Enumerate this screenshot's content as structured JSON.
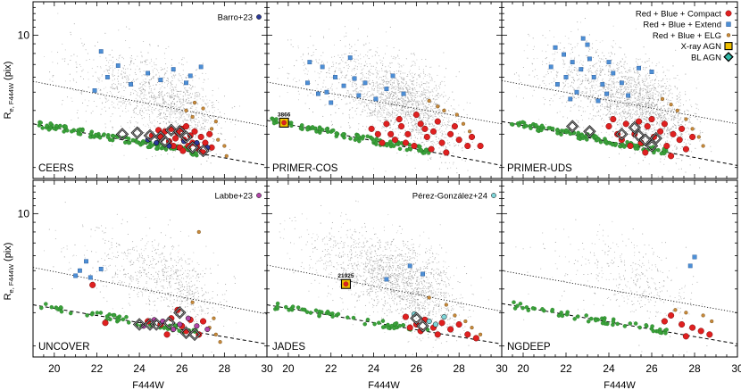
{
  "chart_data": {
    "type": "scatter",
    "title": "",
    "xlabel": "F444W",
    "ylabel_main": "R",
    "ylabel_sub": "e, F444W",
    "ylabel_unit": "(pix)",
    "xlim": [
      19,
      30
    ],
    "yscale": "log",
    "ylim": [
      1.75,
      15
    ],
    "xticks": [
      20,
      22,
      24,
      26,
      28,
      30
    ],
    "yticks": [
      10
    ],
    "legend": {
      "position": "top-right",
      "entries": [
        {
          "label": "Red + Blue + Compact",
          "marker": "circle-large",
          "color": "#e02020"
        },
        {
          "label": "Red + Blue + Extend",
          "marker": "square",
          "color": "#4d8fd6"
        },
        {
          "label": "Red + Blue + ELG",
          "marker": "circle-small",
          "color": "#c88a3a"
        },
        {
          "label": "X-ray AGN",
          "marker": "open-square",
          "color": "#f0c000"
        },
        {
          "label": "BL AGN",
          "marker": "open-diamond",
          "color": "#2fb9a8"
        }
      ]
    },
    "panels": [
      {
        "name": "CEERS",
        "ref": "Barro+23",
        "ref_color": "#2c3a99",
        "ref_shape": "circle",
        "density": 1.0,
        "upper_line": [
          [
            19,
            5.7
          ],
          [
            30,
            3.3
          ]
        ],
        "lower_line": [
          [
            19,
            3.4
          ],
          [
            30,
            2.05
          ]
        ],
        "compact": [
          [
            25.0,
            2.9
          ],
          [
            25.4,
            2.75
          ],
          [
            25.8,
            3.05
          ],
          [
            26.1,
            2.8
          ],
          [
            26.3,
            2.6
          ],
          [
            26.6,
            3.1
          ],
          [
            26.9,
            2.9
          ],
          [
            25.6,
            2.6
          ],
          [
            26.0,
            3.2
          ],
          [
            27.1,
            2.7
          ],
          [
            25.2,
            3.1
          ],
          [
            26.4,
            2.95
          ],
          [
            26.8,
            2.5
          ],
          [
            27.3,
            3.0
          ],
          [
            25.7,
            2.85
          ],
          [
            26.2,
            3.3
          ],
          [
            24.6,
            2.95
          ],
          [
            27.0,
            2.4
          ],
          [
            26.5,
            2.7
          ],
          [
            25.9,
            2.55
          ],
          [
            26.7,
            2.65
          ],
          [
            27.4,
            2.55
          ],
          [
            24.9,
            3.15
          ],
          [
            26.05,
            2.45
          ],
          [
            25.5,
            3.2
          ]
        ],
        "extend": [
          [
            22.2,
            8.2
          ],
          [
            23.0,
            6.9
          ],
          [
            22.5,
            6.0
          ],
          [
            23.6,
            5.5
          ],
          [
            21.9,
            5.1
          ],
          [
            24.4,
            6.3
          ],
          [
            25.6,
            6.6
          ],
          [
            26.2,
            5.6
          ],
          [
            26.4,
            6.1
          ],
          [
            26.9,
            6.8
          ],
          [
            25.0,
            5.8
          ]
        ],
        "elg": [
          [
            26.6,
            4.4
          ],
          [
            27.0,
            4.1
          ],
          [
            26.5,
            3.7
          ],
          [
            27.4,
            3.2
          ],
          [
            27.7,
            2.8
          ],
          [
            28.0,
            2.6
          ],
          [
            28.1,
            2.3
          ],
          [
            27.6,
            3.5
          ],
          [
            26.2,
            4.0
          ]
        ],
        "blagn": [
          [
            23.2,
            3.0
          ],
          [
            23.9,
            3.05
          ],
          [
            24.5,
            2.95
          ],
          [
            25.0,
            2.9
          ],
          [
            25.2,
            2.75
          ],
          [
            25.5,
            3.15
          ],
          [
            25.9,
            3.1
          ],
          [
            26.2,
            2.9
          ],
          [
            26.5,
            2.55
          ],
          [
            27.0,
            2.45
          ]
        ],
        "xray": [],
        "refpts": [
          [
            24.4,
            2.8
          ],
          [
            24.8,
            2.7
          ],
          [
            25.4,
            2.6
          ],
          [
            26.1,
            2.75
          ],
          [
            26.7,
            2.7
          ],
          [
            27.2,
            2.55
          ]
        ],
        "anno": null
      },
      {
        "name": "PRIMER-COS",
        "ref": "",
        "ref_color": "",
        "ref_shape": "",
        "density": 1.35,
        "upper_line": [
          [
            19,
            5.65
          ],
          [
            30,
            3.4
          ]
        ],
        "lower_line": [
          [
            19,
            3.55
          ],
          [
            30,
            2.05
          ]
        ],
        "compact": [
          [
            24.2,
            3.0
          ],
          [
            24.6,
            3.4
          ],
          [
            25.0,
            2.8
          ],
          [
            25.3,
            3.3
          ],
          [
            25.6,
            3.0
          ],
          [
            25.9,
            2.6
          ],
          [
            26.2,
            3.4
          ],
          [
            26.5,
            2.9
          ],
          [
            26.8,
            3.1
          ],
          [
            27.2,
            2.7
          ],
          [
            27.6,
            3.0
          ],
          [
            28.0,
            2.8
          ],
          [
            28.4,
            2.6
          ],
          [
            27.0,
            3.5
          ],
          [
            26.0,
            3.8
          ],
          [
            25.2,
            3.6
          ],
          [
            24.8,
            3.0
          ],
          [
            26.7,
            2.5
          ],
          [
            27.8,
            3.3
          ],
          [
            28.6,
            2.9
          ],
          [
            23.9,
            3.2
          ],
          [
            26.4,
            3.2
          ],
          [
            25.5,
            2.7
          ],
          [
            27.4,
            2.4
          ],
          [
            24.4,
            2.7
          ],
          [
            29.0,
            2.6
          ]
        ],
        "extend": [
          [
            21.0,
            7.2
          ],
          [
            21.6,
            6.8
          ],
          [
            22.2,
            6.0
          ],
          [
            22.6,
            5.4
          ],
          [
            23.1,
            5.9
          ],
          [
            21.8,
            5.0
          ],
          [
            23.6,
            5.6
          ],
          [
            24.1,
            4.6
          ],
          [
            24.6,
            5.2
          ],
          [
            25.4,
            4.9
          ],
          [
            22.9,
            7.6
          ],
          [
            20.9,
            5.6
          ],
          [
            23.3,
            4.8
          ],
          [
            22.0,
            4.4
          ],
          [
            24.9,
            6.1
          ],
          [
            21.4,
            4.9
          ]
        ],
        "elg": [
          [
            26.6,
            4.5
          ],
          [
            27.3,
            4.0
          ],
          [
            27.9,
            3.8
          ],
          [
            28.2,
            3.4
          ],
          [
            28.5,
            3.1
          ],
          [
            27.0,
            4.2
          ]
        ],
        "blagn": [],
        "xray": [
          [
            19.8,
            3.45
          ]
        ],
        "refpts": [],
        "anno": {
          "text": "3866",
          "x": 19.8,
          "y": 3.45
        }
      },
      {
        "name": "PRIMER-UDS",
        "ref": "",
        "ref_color": "",
        "ref_shape": "",
        "density": 1.5,
        "upper_line": [
          [
            19,
            5.75
          ],
          [
            30,
            3.4
          ]
        ],
        "lower_line": [
          [
            19,
            3.5
          ],
          [
            30,
            2.05
          ]
        ],
        "compact": [
          [
            24.0,
            3.3
          ],
          [
            24.4,
            3.0
          ],
          [
            24.8,
            3.4
          ],
          [
            25.2,
            3.0
          ],
          [
            25.5,
            2.7
          ],
          [
            25.8,
            3.3
          ],
          [
            26.1,
            2.9
          ],
          [
            26.4,
            3.1
          ],
          [
            26.7,
            2.6
          ],
          [
            27.0,
            3.0
          ],
          [
            27.3,
            2.8
          ],
          [
            27.6,
            2.5
          ],
          [
            25.0,
            2.6
          ],
          [
            26.0,
            3.6
          ],
          [
            26.6,
            3.4
          ],
          [
            24.6,
            2.8
          ],
          [
            27.9,
            2.9
          ],
          [
            25.7,
            2.4
          ],
          [
            26.9,
            2.3
          ],
          [
            24.2,
            3.6
          ],
          [
            25.4,
            3.5
          ],
          [
            27.4,
            3.2
          ]
        ],
        "extend": [
          [
            21.5,
            8.6
          ],
          [
            21.9,
            7.9
          ],
          [
            22.3,
            7.2
          ],
          [
            22.7,
            6.6
          ],
          [
            23.0,
            8.9
          ],
          [
            23.3,
            6.0
          ],
          [
            23.7,
            5.5
          ],
          [
            24.2,
            6.3
          ],
          [
            22.0,
            6.0
          ],
          [
            21.6,
            5.5
          ],
          [
            22.5,
            5.0
          ],
          [
            23.9,
            4.9
          ],
          [
            24.6,
            5.6
          ],
          [
            21.3,
            6.8
          ],
          [
            22.8,
            9.6
          ],
          [
            24.0,
            7.2
          ],
          [
            25.4,
            6.7
          ],
          [
            26.0,
            6.4
          ],
          [
            23.5,
            4.5
          ],
          [
            22.2,
            4.6
          ],
          [
            24.9,
            4.8
          ],
          [
            23.1,
            7.5
          ]
        ],
        "elg": [
          [
            26.5,
            4.6
          ],
          [
            27.2,
            4.0
          ],
          [
            27.6,
            3.6
          ],
          [
            27.9,
            3.2
          ],
          [
            28.2,
            2.9
          ],
          [
            28.4,
            2.6
          ],
          [
            26.9,
            4.3
          ]
        ],
        "blagn": [
          [
            22.3,
            3.3
          ],
          [
            23.1,
            3.1
          ],
          [
            24.6,
            3.0
          ],
          [
            25.4,
            2.95
          ],
          [
            25.7,
            2.8
          ],
          [
            26.2,
            2.85
          ],
          [
            25.2,
            3.25
          ],
          [
            26.0,
            2.6
          ]
        ],
        "xray": [],
        "refpts": [],
        "anno": null
      },
      {
        "name": "UNCOVER",
        "ref": "Labbe+23",
        "ref_color": "#b245a8",
        "ref_shape": "circle",
        "density": 0.55,
        "upper_line": [
          [
            19,
            5.2
          ],
          [
            30,
            2.95
          ]
        ],
        "lower_line": [
          [
            19,
            3.3
          ],
          [
            30,
            2.05
          ]
        ],
        "compact": [
          [
            21.8,
            4.2
          ],
          [
            25.0,
            2.6
          ],
          [
            25.5,
            2.8
          ],
          [
            26.0,
            2.55
          ],
          [
            26.4,
            2.75
          ],
          [
            26.8,
            2.3
          ],
          [
            25.8,
            3.1
          ],
          [
            27.0,
            2.7
          ],
          [
            22.4,
            2.65
          ],
          [
            26.2,
            2.4
          ],
          [
            24.4,
            2.7
          ],
          [
            25.3,
            2.3
          ]
        ],
        "extend": [
          [
            21.0,
            4.7
          ],
          [
            21.7,
            4.6
          ],
          [
            21.5,
            5.6
          ],
          [
            22.2,
            5.1
          ],
          [
            21.2,
            5.0
          ]
        ],
        "elg": [
          [
            26.5,
            3.4
          ],
          [
            27.5,
            2.8
          ],
          [
            27.3,
            2.5
          ],
          [
            26.8,
            8.0
          ],
          [
            27.8,
            2.1
          ],
          [
            27.6,
            2.3
          ]
        ],
        "blagn": [
          [
            24.0,
            2.6
          ],
          [
            24.5,
            2.6
          ],
          [
            24.8,
            2.6
          ],
          [
            25.4,
            2.65
          ],
          [
            25.9,
            3.0
          ],
          [
            26.2,
            2.35
          ],
          [
            26.6,
            2.3
          ]
        ],
        "xray": [],
        "refpts": [
          [
            24.2,
            2.55
          ],
          [
            25.1,
            2.7
          ],
          [
            25.6,
            2.45
          ],
          [
            26.3,
            2.8
          ],
          [
            26.7,
            2.55
          ],
          [
            27.2,
            2.45
          ],
          [
            24.7,
            2.75
          ],
          [
            25.9,
            2.6
          ]
        ],
        "anno": null
      },
      {
        "name": "JADES",
        "ref": "Pérez-González+24",
        "ref_color": "#7fd6d9",
        "ref_shape": "circle",
        "density": 1.25,
        "upper_line": [
          [
            19,
            5.35
          ],
          [
            30,
            3.05
          ]
        ],
        "lower_line": [
          [
            19,
            3.3
          ],
          [
            30,
            2.05
          ]
        ],
        "compact": [
          [
            25.5,
            2.85
          ],
          [
            26.0,
            2.6
          ],
          [
            26.4,
            2.75
          ],
          [
            26.8,
            2.5
          ],
          [
            27.2,
            2.65
          ],
          [
            27.6,
            2.45
          ],
          [
            28.0,
            2.6
          ],
          [
            28.4,
            2.3
          ],
          [
            26.2,
            2.4
          ],
          [
            27.0,
            2.3
          ],
          [
            25.7,
            2.5
          ],
          [
            28.8,
            2.2
          ]
        ],
        "extend": [
          [
            25.7,
            5.3
          ],
          [
            26.3,
            4.8
          ],
          [
            24.6,
            4.5
          ]
        ],
        "elg": [
          [
            26.6,
            3.6
          ],
          [
            27.4,
            3.3
          ],
          [
            27.8,
            2.9
          ],
          [
            28.3,
            2.7
          ],
          [
            28.6,
            2.5
          ],
          [
            29.0,
            2.3
          ]
        ],
        "blagn": [
          [
            26.0,
            2.8
          ],
          [
            26.3,
            2.55
          ]
        ],
        "xray": [
          [
            22.7,
            4.25
          ]
        ],
        "refpts": [
          [
            25.9,
            2.95
          ],
          [
            26.6,
            2.7
          ],
          [
            27.3,
            2.85
          ],
          [
            26.9,
            2.6
          ]
        ],
        "anno": {
          "text": "21925",
          "x": 22.7,
          "y": 4.25
        }
      },
      {
        "name": "NGDEEP",
        "ref": "",
        "ref_color": "",
        "ref_shape": "",
        "density": 0.28,
        "upper_line": [
          [
            19,
            5.0
          ],
          [
            30,
            3.0
          ]
        ],
        "lower_line": [
          [
            19,
            3.35
          ],
          [
            30,
            2.05
          ]
        ],
        "compact": [
          [
            26.6,
            2.7
          ],
          [
            27.4,
            2.6
          ],
          [
            27.9,
            2.5
          ],
          [
            28.3,
            2.4
          ],
          [
            26.9,
            2.9
          ],
          [
            28.7,
            2.3
          ],
          [
            27.6,
            2.25
          ]
        ],
        "extend": [
          [
            27.8,
            5.3
          ],
          [
            28.0,
            5.9
          ]
        ],
        "elg": [
          [
            27.1,
            3.1
          ],
          [
            28.4,
            2.9
          ],
          [
            28.8,
            2.7
          ],
          [
            27.6,
            3.0
          ]
        ],
        "blagn": [],
        "xray": [],
        "refpts": [],
        "anno": null
      }
    ]
  }
}
